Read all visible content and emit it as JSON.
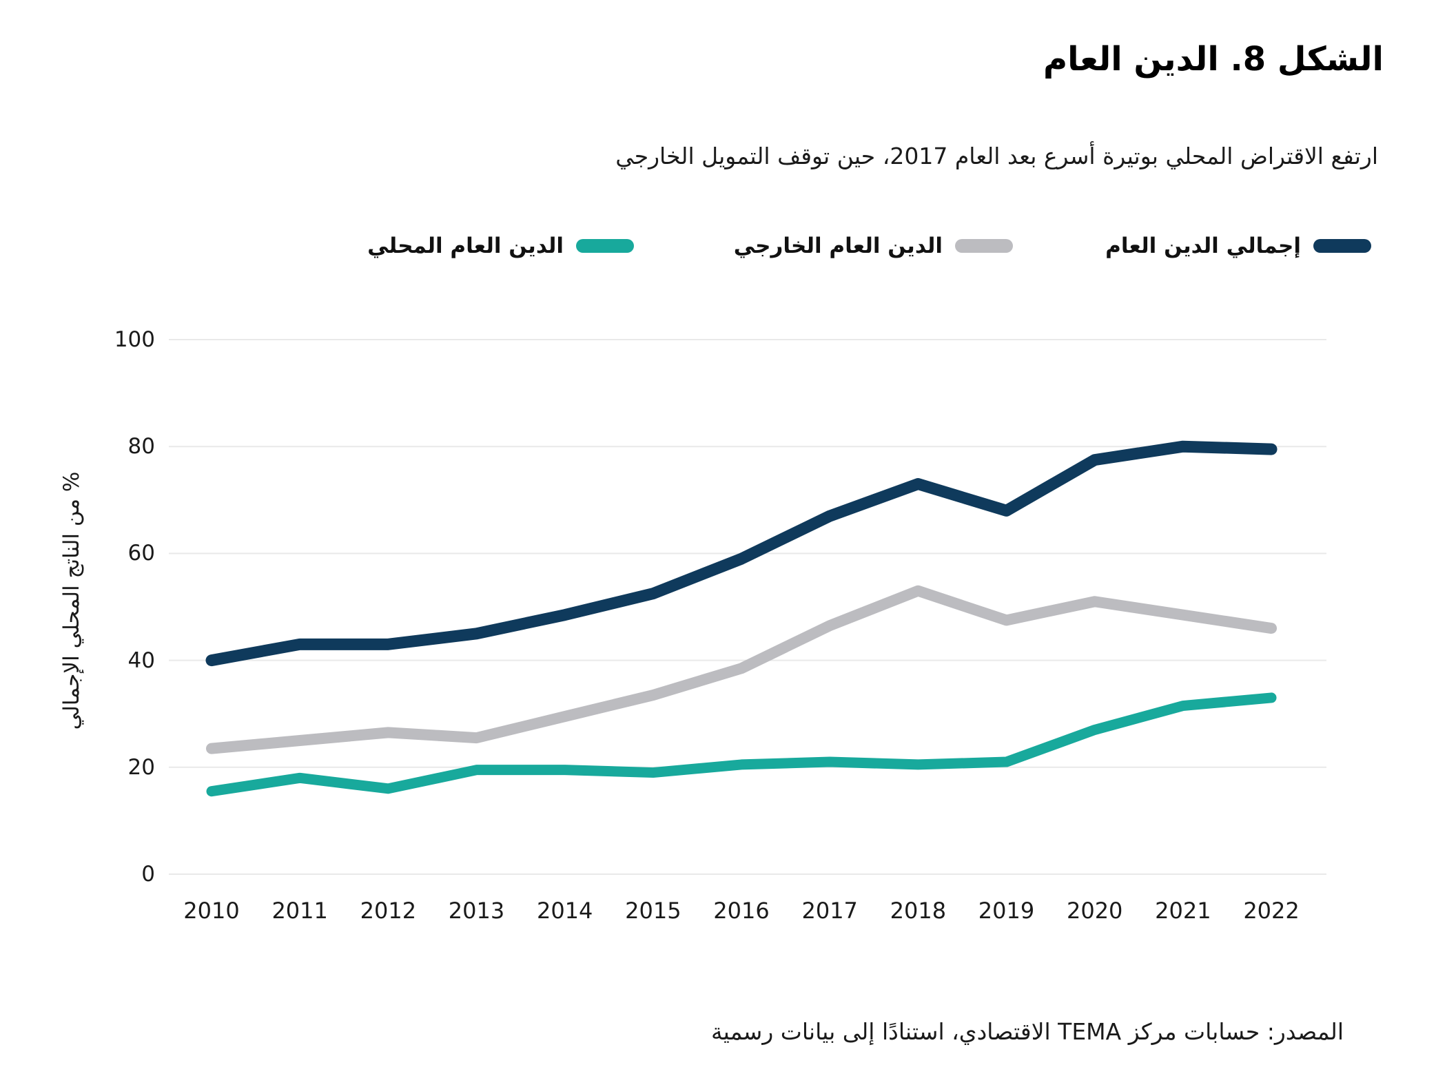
{
  "title": "الشكل 8. الدين العام",
  "subtitle": "ارتفع الاقتراض المحلي بوتيرة أسرع بعد العام 2017، حين توقف التمويل الخارجي",
  "source": "المصدر: حسابات مركز TEMA الاقتصادي، استنادًا إلى بيانات رسمية",
  "colors": {
    "total_debt": "#0f3a5c",
    "external_debt": "#bcbcc0",
    "domestic_debt": "#18a99c",
    "gridline": "#e9e9e9",
    "text": "#1a1a1a"
  },
  "legend": [
    {
      "label": "إجمالي الدين العام",
      "color": "#0f3a5c"
    },
    {
      "label": "الدين العام الخارجي",
      "color": "#bcbcc0"
    },
    {
      "label": "الدين العام المحلي",
      "color": "#18a99c"
    }
  ],
  "chart_data": {
    "type": "line",
    "title": "الشكل 8. الدين العام",
    "xlabel": "",
    "ylabel": "% من الناتج المحلي الإجمالي",
    "x": [
      2010,
      2011,
      2012,
      2013,
      2014,
      2015,
      2016,
      2017,
      2018,
      2019,
      2020,
      2021,
      2022
    ],
    "series": [
      {
        "name": "إجمالي الدين العام",
        "color": "#0f3a5c",
        "stroke_width": 17,
        "values": [
          40,
          43,
          43,
          45,
          48.5,
          52.5,
          59,
          67,
          73,
          68,
          77.5,
          80,
          79.5
        ]
      },
      {
        "name": "الدين العام الخارجي",
        "color": "#bcbcc0",
        "stroke_width": 16,
        "values": [
          23.5,
          25,
          26.5,
          25.5,
          29.5,
          33.5,
          38.5,
          46.5,
          53,
          47.5,
          51,
          48.5,
          46
        ]
      },
      {
        "name": "الدين العام المحلي",
        "color": "#18a99c",
        "stroke_width": 15,
        "values": [
          15.5,
          18,
          16,
          19.5,
          19.5,
          19,
          20.5,
          21,
          20.5,
          21,
          27,
          31.5,
          33
        ]
      }
    ],
    "ylim": [
      0,
      100
    ],
    "yticks": [
      0,
      20,
      40,
      60,
      80,
      100
    ],
    "grid": "horizontal",
    "legend_position": "top"
  }
}
